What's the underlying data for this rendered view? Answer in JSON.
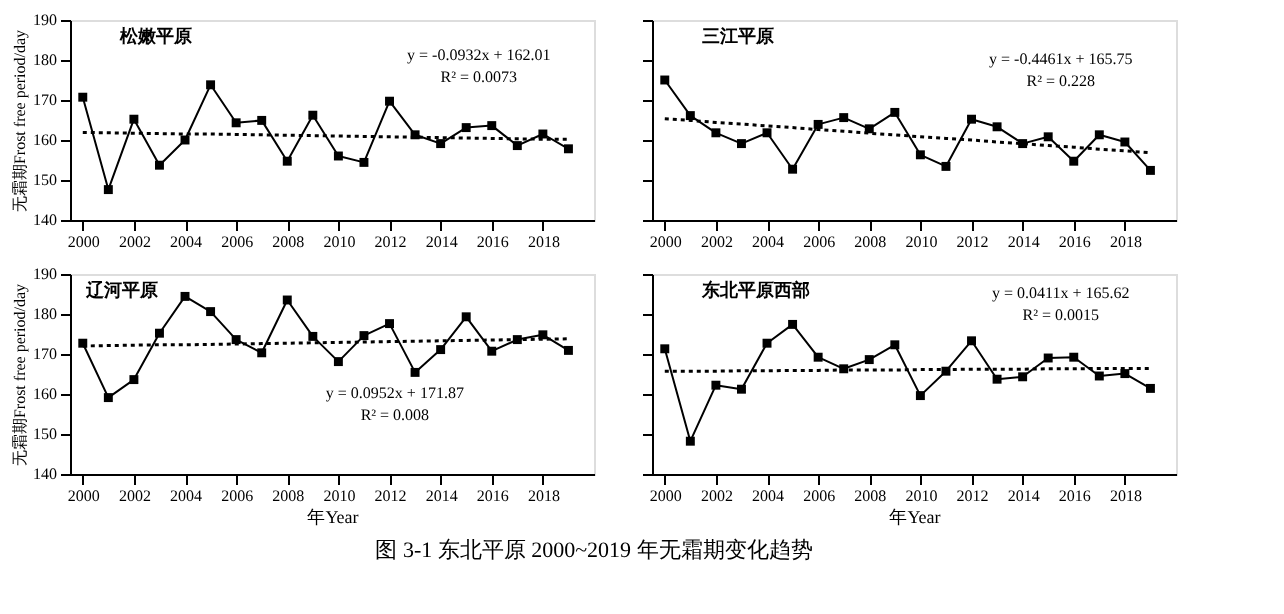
{
  "chart_data": [
    {
      "type": "line",
      "title": "松嫩平原",
      "ylabel": "无霜期Frost free period/day",
      "x": [
        2000,
        2001,
        2002,
        2003,
        2004,
        2005,
        2006,
        2007,
        2008,
        2009,
        2010,
        2011,
        2012,
        2013,
        2014,
        2015,
        2016,
        2017,
        2018,
        2019
      ],
      "xlim": [
        1999.5,
        2020
      ],
      "xticks": [
        2000,
        2002,
        2004,
        2006,
        2008,
        2010,
        2012,
        2014,
        2016,
        2018
      ],
      "ylim": [
        140,
        190
      ],
      "yticks": [
        140,
        150,
        160,
        170,
        180,
        190
      ],
      "grid": false,
      "series": [
        {
          "color": "#000000",
          "marker": "square",
          "line_style": "solid",
          "values": [
            170.7,
            147.6,
            165.2,
            153.7,
            160.0,
            173.8,
            164.3,
            164.9,
            154.7,
            166.2,
            156.0,
            154.4,
            169.7,
            161.3,
            159.1,
            163.1,
            163.6,
            158.6,
            161.5,
            157.8
          ]
        },
        {
          "type": "line",
          "color": "#000000",
          "marker": "none",
          "line_style": "dotted",
          "values": [
            161.9,
            161.8,
            161.7,
            161.6,
            161.5,
            161.5,
            161.4,
            161.3,
            161.2,
            161.1,
            161.0,
            160.9,
            160.8,
            160.7,
            160.6,
            160.5,
            160.4,
            160.3,
            160.2,
            160.2
          ]
        }
      ],
      "annotations": [
        "y = -0.0932x + 162.01",
        "R² = 0.0073"
      ]
    },
    {
      "type": "line",
      "title": "三江平原",
      "x": [
        2000,
        2001,
        2002,
        2003,
        2004,
        2005,
        2006,
        2007,
        2008,
        2009,
        2010,
        2011,
        2012,
        2013,
        2014,
        2015,
        2016,
        2017,
        2018,
        2019
      ],
      "xlim": [
        1999.5,
        2020
      ],
      "xticks": [
        2000,
        2002,
        2004,
        2006,
        2008,
        2010,
        2012,
        2014,
        2016,
        2018
      ],
      "ylim": [
        140,
        190
      ],
      "yticks": [
        140,
        150,
        160,
        170,
        180,
        190
      ],
      "tick_labels": "x",
      "grid": false,
      "series": [
        {
          "color": "#000000",
          "marker": "square",
          "line_style": "solid",
          "values": [
            175.0,
            166.1,
            161.8,
            159.1,
            161.8,
            152.7,
            163.9,
            165.6,
            162.8,
            166.9,
            156.3,
            153.4,
            165.2,
            163.3,
            159.1,
            160.8,
            154.7,
            161.3,
            159.5,
            152.4
          ]
        },
        {
          "type": "line",
          "color": "#000000",
          "marker": "none",
          "line_style": "dotted",
          "values": [
            165.3,
            164.9,
            164.4,
            164.0,
            163.5,
            163.1,
            162.6,
            162.2,
            161.7,
            161.3,
            160.8,
            160.4,
            160.0,
            159.5,
            159.1,
            158.6,
            158.2,
            157.7,
            157.3,
            156.8
          ]
        }
      ],
      "annotations": [
        "y = -0.4461x + 165.75",
        "R² = 0.228"
      ]
    },
    {
      "type": "line",
      "title": "辽河平原",
      "xlabel": "年Year",
      "ylabel": "无霜期Frost free period/day",
      "x": [
        2000,
        2001,
        2002,
        2003,
        2004,
        2005,
        2006,
        2007,
        2008,
        2009,
        2010,
        2011,
        2012,
        2013,
        2014,
        2015,
        2016,
        2017,
        2018,
        2019
      ],
      "xlim": [
        1999.5,
        2020
      ],
      "xticks": [
        2000,
        2002,
        2004,
        2006,
        2008,
        2010,
        2012,
        2014,
        2016,
        2018
      ],
      "ylim": [
        140,
        190
      ],
      "yticks": [
        140,
        150,
        160,
        170,
        180,
        190
      ],
      "grid": false,
      "series": [
        {
          "color": "#000000",
          "marker": "square",
          "line_style": "solid",
          "values": [
            172.7,
            159.1,
            163.6,
            175.2,
            184.4,
            180.6,
            173.6,
            170.3,
            183.5,
            174.4,
            168.1,
            174.6,
            177.6,
            165.4,
            171.1,
            179.3,
            170.7,
            173.6,
            174.8,
            170.9
          ]
        },
        {
          "type": "line",
          "color": "#000000",
          "marker": "none",
          "line_style": "dotted",
          "values": [
            172.0,
            172.1,
            172.2,
            172.3,
            172.3,
            172.4,
            172.5,
            172.6,
            172.7,
            172.8,
            172.9,
            173.0,
            173.1,
            173.2,
            173.3,
            173.4,
            173.5,
            173.6,
            173.7,
            173.8
          ]
        }
      ],
      "annotations": [
        "y = 0.0952x + 171.87",
        "R² = 0.008"
      ]
    },
    {
      "type": "line",
      "title": "东北平原西部",
      "xlabel": "年Year",
      "x": [
        2000,
        2001,
        2002,
        2003,
        2004,
        2005,
        2006,
        2007,
        2008,
        2009,
        2010,
        2011,
        2012,
        2013,
        2014,
        2015,
        2016,
        2017,
        2018,
        2019
      ],
      "xlim": [
        1999.5,
        2020
      ],
      "xticks": [
        2000,
        2002,
        2004,
        2006,
        2008,
        2010,
        2012,
        2014,
        2016,
        2018
      ],
      "ylim": [
        140,
        190
      ],
      "yticks": [
        140,
        150,
        160,
        170,
        180,
        190
      ],
      "tick_labels": "x",
      "grid": false,
      "series": [
        {
          "color": "#000000",
          "marker": "square",
          "line_style": "solid",
          "values": [
            171.3,
            148.2,
            162.2,
            161.2,
            172.7,
            177.4,
            169.2,
            166.3,
            168.6,
            172.3,
            159.6,
            165.7,
            173.3,
            163.7,
            164.3,
            169.0,
            169.2,
            164.5,
            165.1,
            161.4
          ]
        },
        {
          "type": "line",
          "color": "#000000",
          "marker": "none",
          "line_style": "dotted",
          "values": [
            165.7,
            165.7,
            165.7,
            165.8,
            165.8,
            165.9,
            165.9,
            166.0,
            166.0,
            166.0,
            166.1,
            166.1,
            166.2,
            166.2,
            166.2,
            166.3,
            166.3,
            166.4,
            166.4,
            166.4
          ]
        }
      ],
      "annotations": [
        "y = 0.0411x + 165.62",
        "R² = 0.0015",
        "图 3-1  东北平原 2000~2019 年无霜期变化趋势"
      ]
    }
  ]
}
